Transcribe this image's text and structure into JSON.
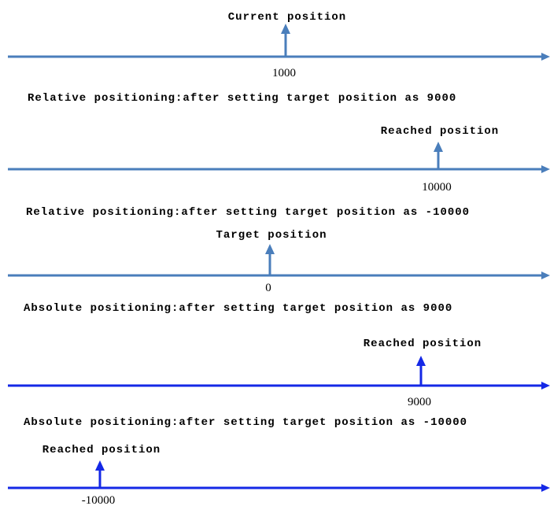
{
  "rows": [
    {
      "marker_label": "Current position",
      "value": "1000"
    },
    {
      "marker_label": "Reached position",
      "value": "10000"
    },
    {
      "marker_label": "Target position",
      "value": "0"
    },
    {
      "marker_label": "Reached position",
      "value": "9000"
    },
    {
      "marker_label": "Reached position",
      "value": "-10000"
    }
  ],
  "captions": [
    "Relative positioning:after setting target position as 9000",
    "Relative positioning:after setting target position as -10000",
    "Absolute positioning:after setting target position as 9000",
    "Absolute positioning:after setting target position as -10000"
  ]
}
